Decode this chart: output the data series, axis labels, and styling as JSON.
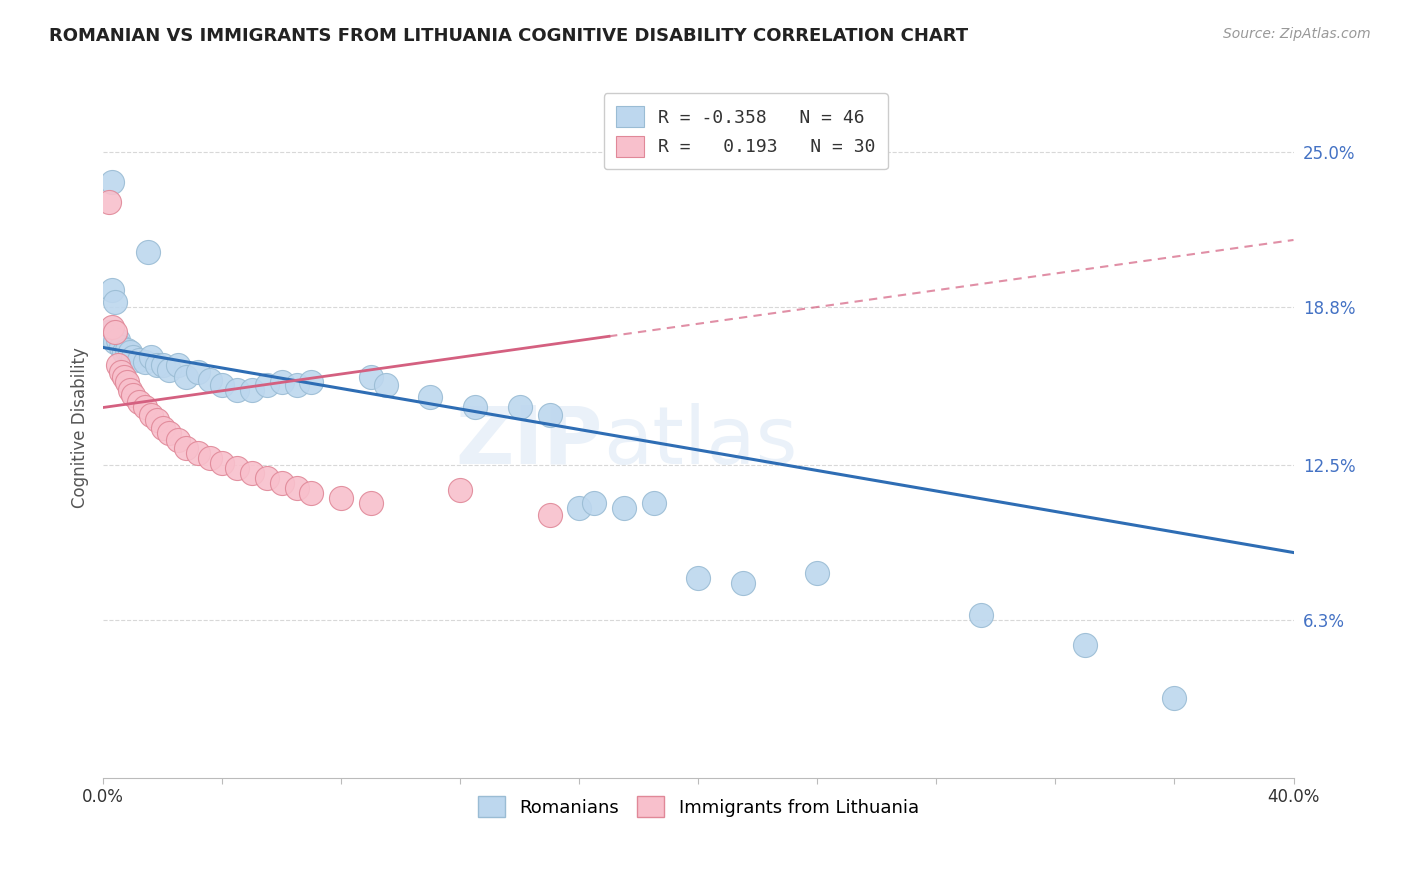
{
  "title": "ROMANIAN VS IMMIGRANTS FROM LITHUANIA COGNITIVE DISABILITY CORRELATION CHART",
  "source": "Source: ZipAtlas.com",
  "ylabel": "Cognitive Disability",
  "y_ticks": [
    0.063,
    0.125,
    0.188,
    0.25
  ],
  "y_tick_labels": [
    "6.3%",
    "12.5%",
    "18.8%",
    "25.0%"
  ],
  "legend_labels_bottom": [
    "Romanians",
    "Immigrants from Lithuania"
  ],
  "background_color": "#ffffff",
  "grid_color": "#d8d8d8",
  "blue_color": "#bdd7ee",
  "blue_edge": "#9abcd4",
  "pink_color": "#f8c0cc",
  "pink_edge": "#e08898",
  "blue_line_color": "#2e6db4",
  "pink_line_color": "#d46080",
  "xmin": 0.0,
  "xmax": 0.4,
  "ymin": 0.0,
  "ymax": 0.28,
  "romanian_points": [
    [
      0.003,
      0.238
    ],
    [
      0.015,
      0.21
    ],
    [
      0.003,
      0.195
    ],
    [
      0.004,
      0.19
    ],
    [
      0.002,
      0.178
    ],
    [
      0.003,
      0.176
    ],
    [
      0.004,
      0.174
    ],
    [
      0.005,
      0.175
    ],
    [
      0.006,
      0.172
    ],
    [
      0.007,
      0.17
    ],
    [
      0.008,
      0.171
    ],
    [
      0.009,
      0.17
    ],
    [
      0.01,
      0.168
    ],
    [
      0.012,
      0.167
    ],
    [
      0.014,
      0.166
    ],
    [
      0.016,
      0.168
    ],
    [
      0.018,
      0.165
    ],
    [
      0.02,
      0.165
    ],
    [
      0.022,
      0.163
    ],
    [
      0.025,
      0.165
    ],
    [
      0.028,
      0.16
    ],
    [
      0.032,
      0.162
    ],
    [
      0.036,
      0.159
    ],
    [
      0.04,
      0.157
    ],
    [
      0.045,
      0.155
    ],
    [
      0.05,
      0.155
    ],
    [
      0.055,
      0.157
    ],
    [
      0.06,
      0.158
    ],
    [
      0.065,
      0.157
    ],
    [
      0.07,
      0.158
    ],
    [
      0.09,
      0.16
    ],
    [
      0.095,
      0.157
    ],
    [
      0.11,
      0.152
    ],
    [
      0.125,
      0.148
    ],
    [
      0.14,
      0.148
    ],
    [
      0.15,
      0.145
    ],
    [
      0.16,
      0.108
    ],
    [
      0.165,
      0.11
    ],
    [
      0.175,
      0.108
    ],
    [
      0.185,
      0.11
    ],
    [
      0.2,
      0.08
    ],
    [
      0.215,
      0.078
    ],
    [
      0.24,
      0.082
    ],
    [
      0.295,
      0.065
    ],
    [
      0.33,
      0.053
    ],
    [
      0.36,
      0.032
    ]
  ],
  "lithuania_points": [
    [
      0.002,
      0.23
    ],
    [
      0.003,
      0.18
    ],
    [
      0.004,
      0.178
    ],
    [
      0.005,
      0.165
    ],
    [
      0.006,
      0.162
    ],
    [
      0.007,
      0.16
    ],
    [
      0.008,
      0.158
    ],
    [
      0.009,
      0.155
    ],
    [
      0.01,
      0.153
    ],
    [
      0.012,
      0.15
    ],
    [
      0.014,
      0.148
    ],
    [
      0.016,
      0.145
    ],
    [
      0.018,
      0.143
    ],
    [
      0.02,
      0.14
    ],
    [
      0.022,
      0.138
    ],
    [
      0.025,
      0.135
    ],
    [
      0.028,
      0.132
    ],
    [
      0.032,
      0.13
    ],
    [
      0.036,
      0.128
    ],
    [
      0.04,
      0.126
    ],
    [
      0.045,
      0.124
    ],
    [
      0.05,
      0.122
    ],
    [
      0.055,
      0.12
    ],
    [
      0.06,
      0.118
    ],
    [
      0.065,
      0.116
    ],
    [
      0.07,
      0.114
    ],
    [
      0.08,
      0.112
    ],
    [
      0.09,
      0.11
    ],
    [
      0.12,
      0.115
    ],
    [
      0.15,
      0.105
    ]
  ]
}
